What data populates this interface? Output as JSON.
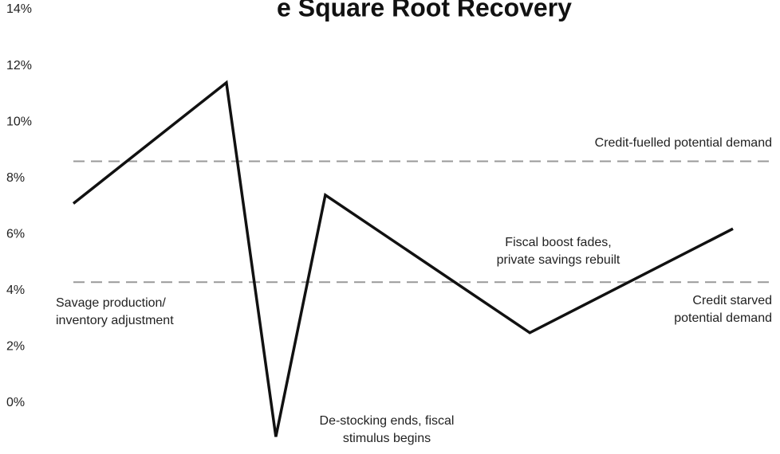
{
  "chart_data": {
    "type": "line",
    "title": "e Square Root Recovery",
    "x": [
      0,
      23.2,
      30.7,
      38.2,
      69.2,
      100
    ],
    "xlim": [
      0,
      100
    ],
    "series": [
      {
        "color": "#111111",
        "values": [
          7.1,
          11.4,
          -1.2,
          7.4,
          2.5,
          6.2
        ]
      }
    ],
    "ylim": [
      -1.8,
      14
    ],
    "yticks": [
      {
        "value": 0,
        "label": "0%"
      },
      {
        "value": 2,
        "label": "2%"
      },
      {
        "value": 4,
        "label": "4%"
      },
      {
        "value": 6,
        "label": "6%"
      },
      {
        "value": 8,
        "label": "8%"
      },
      {
        "value": 10,
        "label": "10%"
      },
      {
        "value": 12,
        "label": "12%"
      },
      {
        "value": 14,
        "label": "14%"
      }
    ],
    "reference_lines": [
      {
        "value": 8.6,
        "color": "#999999"
      },
      {
        "value": 4.3,
        "color": "#999999"
      }
    ],
    "annotations": [
      {
        "lines": [
          "Credit-fuelled potential demand"
        ]
      },
      {
        "lines": [
          "Fiscal boost fades,",
          "private savings rebuilt"
        ]
      },
      {
        "lines": [
          "Savage production/",
          "inventory adjustment"
        ]
      },
      {
        "lines": [
          "Credit starved",
          "potential demand"
        ]
      },
      {
        "lines": [
          "De-stocking ends, fiscal",
          "stimulus begins"
        ]
      }
    ]
  }
}
